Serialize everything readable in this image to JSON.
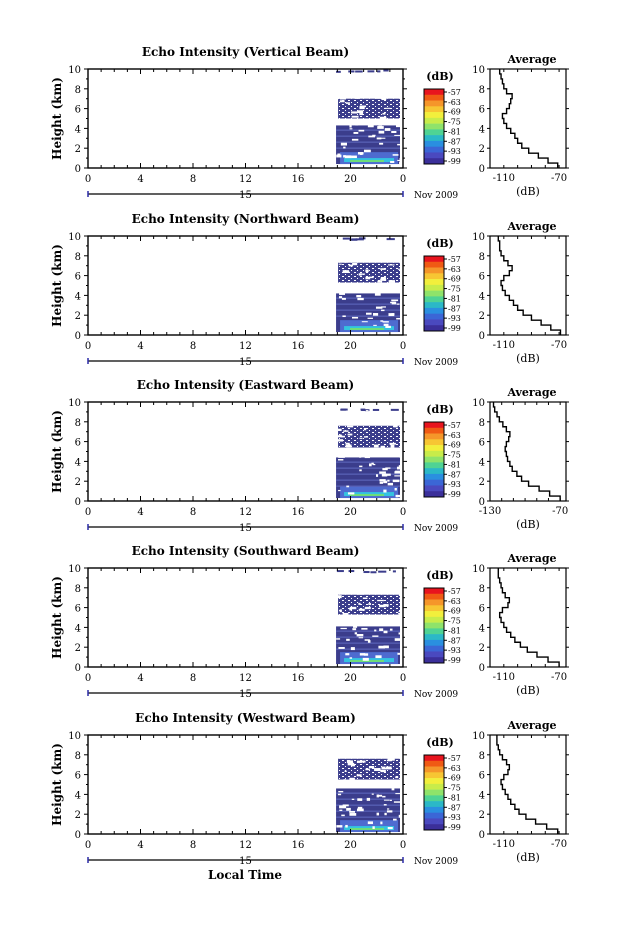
{
  "figure": {
    "xlabel": "Local Time",
    "date_label": "Nov 2009",
    "day_label": "15",
    "cbar_unit": "(dB)",
    "cbar_ticks": [
      "-57",
      "-63",
      "-69",
      "-75",
      "-81",
      "-87",
      "-93",
      "-99"
    ],
    "cbar_colors": [
      "#e8141e",
      "#f05a14",
      "#f5962a",
      "#f7c633",
      "#f2ef3c",
      "#c8ec4a",
      "#8fe36a",
      "#4fd394",
      "#2bb8c7",
      "#2a8fe0",
      "#3b66d6",
      "#4a49bf",
      "#3b2f9a"
    ],
    "echo_color": "#3b3d8c",
    "echo_light": "#4e6bd0",
    "echo_cyan": "#34c3e0",
    "echo_green": "#6ddd78",
    "profile_title": "Average",
    "profile_xlabel": "(dB)",
    "ylabel": "Height (km)"
  },
  "chart_data": [
    {
      "type": "heatmap",
      "title": "Echo Intensity (Vertical Beam)",
      "xlabel": "Local Time",
      "ylabel": "Height (km)",
      "x_ticks": [
        "0",
        "4",
        "8",
        "12",
        "16",
        "20",
        "0"
      ],
      "xlim": [
        0,
        24
      ],
      "y_ticks": [
        "0",
        "2",
        "4",
        "6",
        "8",
        "10"
      ],
      "ylim": [
        0,
        10
      ],
      "data_start_hour": 18.9,
      "layers": [
        {
          "from": 0.4,
          "to": 4.3,
          "level": "strong"
        },
        {
          "from": 5.0,
          "to": 7.0,
          "level": "medium"
        },
        {
          "from": 9.8,
          "to": 10.0,
          "level": "weak"
        }
      ],
      "colorbar": {
        "unit": "dB",
        "range": [
          -99,
          -57
        ]
      },
      "profile": {
        "xlim": [
          -120,
          -65
        ],
        "x_ticks": [
          "-110",
          "-70"
        ],
        "height": [
          0.0,
          0.5,
          1.0,
          1.5,
          2.0,
          2.5,
          3.0,
          3.5,
          4.0,
          4.5,
          5.0,
          5.5,
          6.0,
          6.5,
          7.0,
          7.5,
          8.0,
          8.5,
          9.0,
          9.5,
          10.0
        ],
        "db": [
          -71,
          -78,
          -85,
          -92,
          -97,
          -100,
          -102,
          -105,
          -108,
          -110,
          -111,
          -108,
          -106,
          -105,
          -104,
          -108,
          -110,
          -111,
          -112,
          -113,
          -113
        ]
      }
    },
    {
      "type": "heatmap",
      "title": "Echo Intensity (Northward Beam)",
      "xlabel": "Local Time",
      "ylabel": "Height (km)",
      "x_ticks": [
        "0",
        "4",
        "8",
        "12",
        "16",
        "20",
        "0"
      ],
      "xlim": [
        0,
        24
      ],
      "y_ticks": [
        "0",
        "2",
        "4",
        "6",
        "8",
        "10"
      ],
      "ylim": [
        0,
        10
      ],
      "data_start_hour": 18.9,
      "layers": [
        {
          "from": 0.3,
          "to": 4.2,
          "level": "strong"
        },
        {
          "from": 5.3,
          "to": 7.3,
          "level": "medium"
        },
        {
          "from": 9.6,
          "to": 9.9,
          "level": "weak"
        }
      ],
      "colorbar": {
        "unit": "dB",
        "range": [
          -99,
          -57
        ]
      },
      "profile": {
        "xlim": [
          -120,
          -65
        ],
        "x_ticks": [
          "-110",
          "-70"
        ],
        "height": [
          0.0,
          0.5,
          1.0,
          1.5,
          2.0,
          2.5,
          3.0,
          3.5,
          4.0,
          4.5,
          5.0,
          5.5,
          6.0,
          6.5,
          7.0,
          7.5,
          8.0,
          8.5,
          9.0,
          9.5,
          10.0
        ],
        "db": [
          -69,
          -76,
          -83,
          -90,
          -96,
          -100,
          -103,
          -106,
          -109,
          -111,
          -112,
          -110,
          -106,
          -104,
          -107,
          -110,
          -112,
          -113,
          -113,
          -114,
          -114
        ]
      }
    },
    {
      "type": "heatmap",
      "title": "Echo Intensity (Eastward Beam)",
      "xlabel": "Local Time",
      "ylabel": "Height (km)",
      "x_ticks": [
        "0",
        "4",
        "8",
        "12",
        "16",
        "20",
        "0"
      ],
      "xlim": [
        0,
        24
      ],
      "y_ticks": [
        "0",
        "2",
        "4",
        "6",
        "8",
        "10"
      ],
      "ylim": [
        0,
        10
      ],
      "data_start_hour": 18.9,
      "layers": [
        {
          "from": 0.3,
          "to": 4.4,
          "level": "strong"
        },
        {
          "from": 5.4,
          "to": 7.6,
          "level": "medium"
        },
        {
          "from": 9.0,
          "to": 9.4,
          "level": "weak"
        }
      ],
      "colorbar": {
        "unit": "dB",
        "range": [
          -99,
          -57
        ]
      },
      "profile": {
        "xlim": [
          -130,
          -65
        ],
        "x_ticks": [
          "-130",
          "-70"
        ],
        "height": [
          0.0,
          0.5,
          1.0,
          1.5,
          2.0,
          2.5,
          3.0,
          3.5,
          4.0,
          4.5,
          5.0,
          5.5,
          6.0,
          6.5,
          7.0,
          7.5,
          8.0,
          8.5,
          9.0,
          9.5,
          10.0
        ],
        "db": [
          -70,
          -79,
          -88,
          -97,
          -103,
          -107,
          -111,
          -113,
          -115,
          -116,
          -117,
          -116,
          -114,
          -113,
          -116,
          -119,
          -122,
          -124,
          -126,
          -127,
          -127
        ]
      }
    },
    {
      "type": "heatmap",
      "title": "Echo Intensity (Southward Beam)",
      "xlabel": "Local Time",
      "ylabel": "Height (km)",
      "x_ticks": [
        "0",
        "4",
        "8",
        "12",
        "16",
        "20",
        "0"
      ],
      "xlim": [
        0,
        24
      ],
      "y_ticks": [
        "0",
        "2",
        "4",
        "6",
        "8",
        "10"
      ],
      "ylim": [
        0,
        10
      ],
      "data_start_hour": 18.9,
      "layers": [
        {
          "from": 0.3,
          "to": 4.1,
          "level": "strong"
        },
        {
          "from": 5.3,
          "to": 7.3,
          "level": "medium"
        },
        {
          "from": 9.4,
          "to": 9.8,
          "level": "weak"
        }
      ],
      "colorbar": {
        "unit": "dB",
        "range": [
          -99,
          -57
        ]
      },
      "profile": {
        "xlim": [
          -120,
          -65
        ],
        "x_ticks": [
          "-110",
          "-70"
        ],
        "height": [
          0.0,
          0.5,
          1.0,
          1.5,
          2.0,
          2.5,
          3.0,
          3.5,
          4.0,
          4.5,
          5.0,
          5.5,
          6.0,
          6.5,
          7.0,
          7.5,
          8.0,
          8.5,
          9.0,
          9.5,
          10.0
        ],
        "db": [
          -70,
          -78,
          -86,
          -93,
          -98,
          -102,
          -105,
          -108,
          -110,
          -112,
          -113,
          -111,
          -107,
          -106,
          -109,
          -111,
          -112,
          -113,
          -114,
          -114,
          -114
        ]
      }
    },
    {
      "type": "heatmap",
      "title": "Echo Intensity (Westward Beam)",
      "xlabel": "Local Time",
      "ylabel": "Height (km)",
      "x_ticks": [
        "0",
        "4",
        "8",
        "12",
        "16",
        "20",
        "0"
      ],
      "xlim": [
        0,
        24
      ],
      "y_ticks": [
        "0",
        "2",
        "4",
        "6",
        "8",
        "10"
      ],
      "ylim": [
        0,
        10
      ],
      "data_start_hour": 18.9,
      "layers": [
        {
          "from": 0.2,
          "to": 4.6,
          "level": "strong"
        },
        {
          "from": 5.5,
          "to": 7.6,
          "level": "medium"
        }
      ],
      "colorbar": {
        "unit": "dB",
        "range": [
          -99,
          -57
        ]
      },
      "profile": {
        "xlim": [
          -120,
          -65
        ],
        "x_ticks": [
          "-110",
          "-70"
        ],
        "height": [
          0.0,
          0.5,
          1.0,
          1.5,
          2.0,
          2.5,
          3.0,
          3.5,
          4.0,
          4.5,
          5.0,
          5.5,
          6.0,
          6.5,
          7.0,
          7.5,
          8.0,
          8.5,
          9.0,
          9.5,
          10.0
        ],
        "db": [
          -71,
          -79,
          -87,
          -94,
          -99,
          -102,
          -105,
          -107,
          -109,
          -111,
          -112,
          -110,
          -107,
          -106,
          -108,
          -111,
          -113,
          -114,
          -115,
          -115,
          -115
        ]
      }
    }
  ]
}
